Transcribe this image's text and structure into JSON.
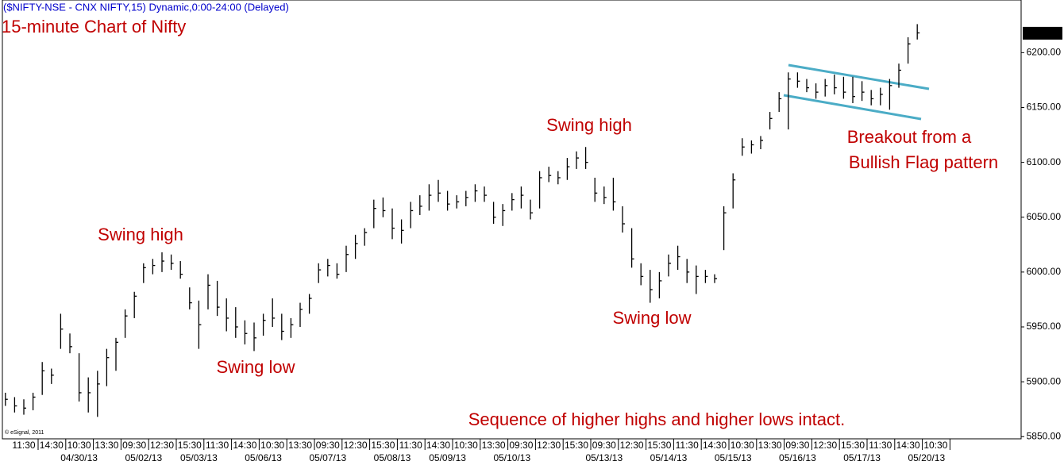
{
  "chart_data": {
    "type": "ohlc",
    "header": "($NIFTY-NSE - CNX NIFTY,15) Dynamic,0:00-24:00 (Delayed)",
    "title": "15-minute Chart of Nifty",
    "annotations": [
      "Swing high",
      "Swing low",
      "Swing high",
      "Swing low",
      "Sequence of higher highs and higher lows intact."
    ],
    "flag_note": [
      "Breakout from a",
      "Bullish Flag pattern"
    ],
    "copyright": "© eSignal, 2011",
    "color": "#000000",
    "trendline_color": "#4bacc6",
    "annotation_color": "#c00000",
    "header_color": "#0000cc",
    "categories": [
      null,
      null,
      "11:30",
      null,
      null,
      "14:30",
      null,
      null,
      "10:30",
      null,
      null,
      "13:30",
      null,
      null,
      "09:30",
      null,
      null,
      "12:30",
      null,
      null,
      "15:30",
      null,
      null,
      "11:30",
      null,
      null,
      "14:30",
      null,
      null,
      "10:30",
      null,
      null,
      "13:30",
      null,
      null,
      "09:30",
      null,
      null,
      "12:30",
      null,
      null,
      "15:30",
      null,
      null,
      "11:30",
      null,
      null,
      "14:30",
      null,
      null,
      "10:30",
      null,
      null,
      "13:30",
      null,
      null,
      "09:30",
      null,
      null,
      "12:30",
      null,
      null,
      "15:30",
      null,
      null,
      "09:30",
      null,
      null,
      "12:30",
      null,
      null,
      "15:30",
      null,
      null,
      "11:30",
      null,
      null,
      "14:30",
      null,
      null,
      "10:30",
      null,
      null,
      "13:30",
      null,
      null,
      "09:30",
      null,
      null,
      "12:30",
      null,
      null,
      "15:30",
      null,
      null,
      "11:30",
      null,
      null,
      "14:30",
      null,
      null,
      "10:30"
    ],
    "dates": [
      null,
      null,
      null,
      null,
      null,
      null,
      null,
      null,
      "04/30/13",
      null,
      null,
      null,
      null,
      null,
      null,
      "05/02/13",
      null,
      null,
      null,
      null,
      null,
      "05/03/13",
      null,
      null,
      null,
      null,
      null,
      null,
      "05/06/13",
      null,
      null,
      null,
      null,
      null,
      null,
      "05/07/13",
      null,
      null,
      null,
      null,
      null,
      null,
      "05/08/13",
      null,
      null,
      null,
      null,
      null,
      "05/09/13",
      null,
      null,
      null,
      null,
      null,
      null,
      "05/10/13",
      null,
      null,
      null,
      null,
      null,
      null,
      null,
      null,
      null,
      "05/13/13",
      null,
      null,
      null,
      null,
      null,
      null,
      "05/14/13",
      null,
      null,
      null,
      null,
      null,
      null,
      "05/15/13",
      null,
      null,
      null,
      null,
      null,
      null,
      "05/16/13",
      null,
      null,
      null,
      null,
      null,
      null,
      "05/17/13",
      null,
      null,
      null,
      null,
      null,
      null,
      "05/20/13",
      null
    ],
    "high": [
      5890,
      5886,
      5884,
      5890,
      5918,
      5912,
      5962,
      5944,
      5926,
      5904,
      5910,
      5930,
      5940,
      5966,
      5982,
      6008,
      6012,
      6018,
      6016,
      6010,
      5986,
      5974,
      5998,
      5992,
      5976,
      5968,
      5956,
      5954,
      5962,
      5976,
      5962,
      5958,
      5972,
      5980,
      6008,
      6012,
      6008,
      6024,
      6034,
      6040,
      6066,
      6068,
      6058,
      6048,
      6064,
      6070,
      6080,
      6084,
      6074,
      6070,
      6074,
      6080,
      6078,
      6064,
      6062,
      6072,
      6078,
      6066,
      6092,
      6096,
      6092,
      6104,
      6110,
      6114,
      6086,
      6078,
      6086,
      6060,
      6040,
      6008,
      6002,
      6000,
      6016,
      6024,
      6012,
      6006,
      6002,
      5998,
      6060,
      6090,
      6122,
      6120,
      6124,
      6146,
      6164,
      6182,
      6182,
      6176,
      6172,
      6176,
      6180,
      6178,
      6178,
      6174,
      6166,
      6168,
      6176,
      6190,
      6214,
      6226,
      null,
      null
    ],
    "low": [
      5878,
      5872,
      5870,
      5874,
      5888,
      5898,
      5930,
      5926,
      5882,
      5872,
      5868,
      5896,
      5910,
      5940,
      5958,
      5990,
      5998,
      6000,
      6002,
      5994,
      5966,
      5930,
      5966,
      5960,
      5946,
      5940,
      5934,
      5928,
      5942,
      5950,
      5938,
      5940,
      5950,
      5962,
      5990,
      5996,
      5994,
      6000,
      6012,
      6024,
      6040,
      6050,
      6030,
      6026,
      6040,
      6052,
      6056,
      6064,
      6056,
      6058,
      6060,
      6064,
      6064,
      6044,
      6042,
      6056,
      6058,
      6048,
      6058,
      6082,
      6080,
      6084,
      6094,
      6094,
      6064,
      6062,
      6056,
      6036,
      6004,
      5988,
      5972,
      5976,
      5996,
      6002,
      5990,
      5980,
      5990,
      5990,
      6020,
      6058,
      6106,
      6108,
      6112,
      6130,
      6146,
      6130,
      6168,
      6164,
      6158,
      6160,
      6162,
      6158,
      6154,
      6156,
      6152,
      6152,
      6148,
      6168,
      6190,
      6212,
      null,
      null
    ],
    "close": [
      5884,
      5878,
      5876,
      5886,
      5910,
      5906,
      5948,
      5932,
      5890,
      5890,
      5898,
      5922,
      5936,
      5960,
      5978,
      6004,
      6006,
      6010,
      6008,
      5998,
      5972,
      5952,
      5988,
      5968,
      5958,
      5950,
      5944,
      5940,
      5956,
      5958,
      5946,
      5952,
      5966,
      5976,
      6002,
      6006,
      5998,
      6016,
      6026,
      6036,
      6058,
      6056,
      6040,
      6038,
      6056,
      6060,
      6070,
      6072,
      6062,
      6064,
      6068,
      6074,
      6070,
      6050,
      6056,
      6066,
      6070,
      6054,
      6086,
      6088,
      6086,
      6096,
      6104,
      6100,
      6072,
      6068,
      6064,
      6044,
      6012,
      5996,
      5984,
      5992,
      6008,
      6014,
      6000,
      5996,
      5996,
      5994,
      6054,
      6084,
      6114,
      6116,
      6120,
      6140,
      6158,
      6176,
      6174,
      6168,
      6164,
      6170,
      6168,
      6164,
      6160,
      6164,
      6158,
      6162,
      6170,
      6184,
      6208,
      6218,
      null,
      null
    ],
    "last_price": {
      "value": 6217.7,
      "label": "6217.70"
    },
    "ylim": [
      5848,
      6248
    ],
    "yticks": [
      {
        "value": 5850,
        "label": "5850.00"
      },
      {
        "value": 5900,
        "label": "5900.00"
      },
      {
        "value": 5950,
        "label": "5950.00"
      },
      {
        "value": 6000,
        "label": "6000.00"
      },
      {
        "value": 6050,
        "label": "6050.00"
      },
      {
        "value": 6100,
        "label": "6100.00"
      },
      {
        "value": 6150,
        "label": "6150.00"
      },
      {
        "value": 6200,
        "label": "6200.00"
      }
    ]
  }
}
